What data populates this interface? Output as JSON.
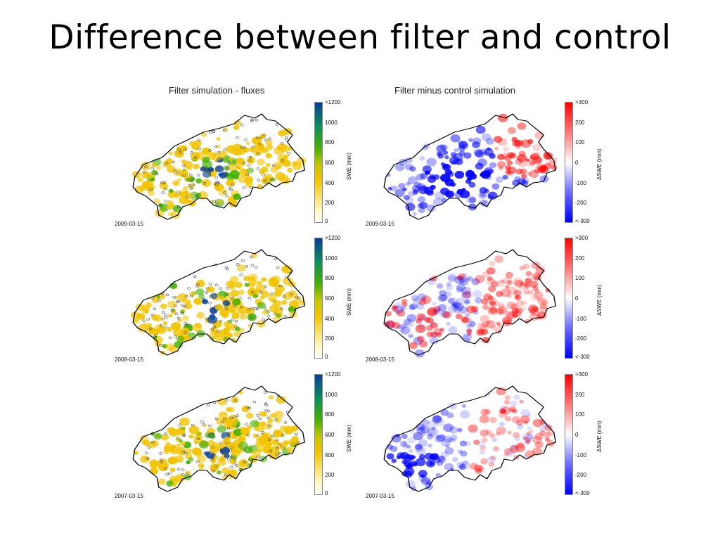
{
  "slide": {
    "title": "Difference between filter and control"
  },
  "columns": {
    "left_title": "Filter simulation - fluxes",
    "right_title": "Filter minus control simulation"
  },
  "rows": [
    {
      "date": "2009-03-15"
    },
    {
      "date": "2008-03-15"
    },
    {
      "date": "2007-03-15"
    }
  ],
  "colorbars": {
    "swe": {
      "label": "SWE (mm)",
      "ticks": [
        ">1200",
        "1000",
        "800",
        "600",
        "400",
        "200",
        "0"
      ],
      "colors": [
        "#0a3f9a",
        "#0a8f5a",
        "#46b000",
        "#c6c600",
        "#f2c400",
        "#fff4b0",
        "#ffffff"
      ]
    },
    "dswe": {
      "label": "ΔSWE (mm)",
      "ticks": [
        ">300",
        "200",
        "100",
        "0",
        "-100",
        "-200",
        "<-300"
      ],
      "colors": [
        "#ff0000",
        "#ff7a7a",
        "#ffffff",
        "#6a6aff",
        "#0000ff"
      ]
    }
  },
  "colors": {
    "outline": "#000000",
    "swe_low": "#f2c400",
    "swe_mid": "#46b000",
    "swe_high": "#0a3f9a",
    "diff_pos": "#ff0000",
    "diff_neg": "#0000ff"
  }
}
